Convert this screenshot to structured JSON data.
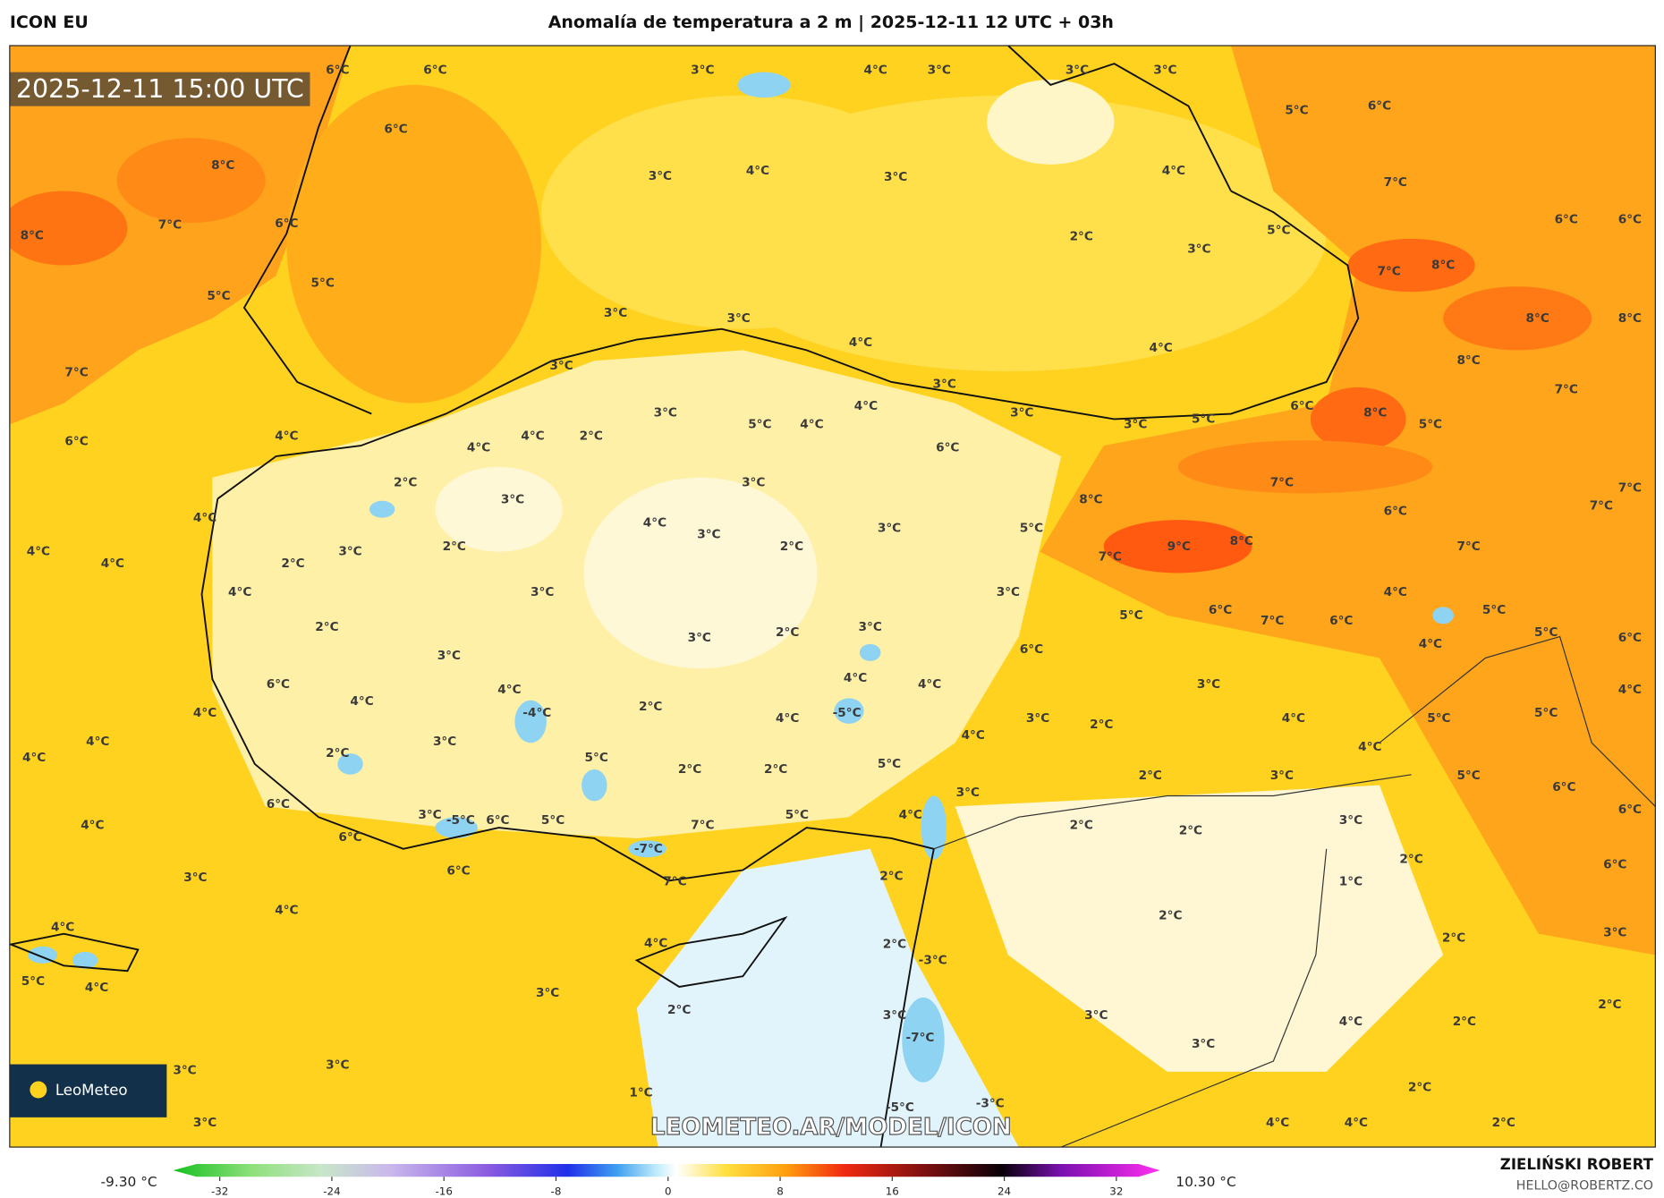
{
  "header": {
    "model": "ICON EU",
    "title": "Anomalía de temperatura a 2 m | 2025-12-11 12 UTC + 03h"
  },
  "map": {
    "timestamp": "2025-12-11 15:00 UTC",
    "watermark": "LEOMETEO.AR/MODEL/ICON",
    "logo": "LeoMeteo",
    "labels": [
      "6°C",
      "6°C",
      "3°C",
      "4°C",
      "3°C",
      "3°C",
      "3°C",
      "6°C",
      "5°C",
      "6°C",
      "8°C",
      "3°C",
      "4°C",
      "3°C",
      "4°C",
      "7°C",
      "8°C",
      "7°C",
      "6°C",
      "5°C",
      "6°C",
      "6°C",
      "2°C",
      "3°C",
      "7°C",
      "8°C",
      "5°C",
      "5°C",
      "3°C",
      "3°C",
      "8°C",
      "8°C",
      "4°C",
      "4°C",
      "7°C",
      "3°C",
      "8°C",
      "3°C",
      "7°C",
      "6°C",
      "4°C",
      "3°C",
      "4°C",
      "3°C",
      "6°C",
      "8°C",
      "4°C",
      "4°C",
      "2°C",
      "5°C",
      "4°C",
      "3°C",
      "5°C",
      "5°C",
      "6°C",
      "2°C",
      "3°C",
      "3°C",
      "8°C",
      "7°C",
      "7°C",
      "4°C",
      "4°C",
      "3°C",
      "5°C",
      "3°C",
      "6°C",
      "7°C",
      "4°C",
      "2°C",
      "3°C",
      "2°C",
      "9°C",
      "8°C",
      "7°C",
      "7°C",
      "4°C",
      "2°C",
      "4°C",
      "3°C",
      "3°C",
      "4°C",
      "5°C",
      "6°C",
      "7°C",
      "6°C",
      "5°C",
      "2°C",
      "3°C",
      "2°C",
      "3°C",
      "6°C",
      "4°C",
      "5°C",
      "6°C",
      "3°C",
      "6°C",
      "4°C",
      "4°C",
      "3°C",
      "4°C",
      "4°C",
      "4°C",
      "-4°C",
      "2°C",
      "-5°C",
      "4°C",
      "3°C",
      "2°C",
      "4°C",
      "5°C",
      "5°C",
      "4°C",
      "4°C",
      "3°C",
      "4°C",
      "4°C",
      "4°C",
      "2°C",
      "5°C",
      "2°C",
      "2°C",
      "5°C",
      "2°C",
      "3°C",
      "5°C",
      "6°C",
      "3°C",
      "6°C",
      "4°C",
      "3°C",
      "-5°C",
      "6°C",
      "5°C",
      "7°C",
      "5°C",
      "4°C",
      "2°C",
      "2°C",
      "3°C",
      "6°C",
      "6°C",
      "-7°C",
      "2°C",
      "6°C",
      "3°C",
      "7°C",
      "2°C",
      "1°C",
      "6°C",
      "4°C",
      "2°C",
      "4°C",
      "2°C",
      "3°C",
      "4°C",
      "2°C",
      "-3°C",
      "5°C",
      "4°C",
      "3°C",
      "2°C",
      "3°C",
      "-7°C",
      "3°C",
      "4°C",
      "2°C",
      "2°C",
      "3°C",
      "3°C",
      "3°C",
      "1°C",
      "-5°C",
      "-3°C",
      "2°C",
      "3°C",
      "4°C",
      "4°C",
      "2°C"
    ]
  },
  "colorbar": {
    "min_label": "-9.30 °C",
    "max_label": "10.30 °C",
    "range": [
      -32,
      32
    ],
    "ticks": [
      -32,
      -24,
      -16,
      -8,
      0,
      8,
      16,
      24,
      32
    ]
  },
  "footer": {
    "author": "ZIELIŃSKI ROBERT",
    "email": "HELLO@ROBERTZ.CO"
  }
}
